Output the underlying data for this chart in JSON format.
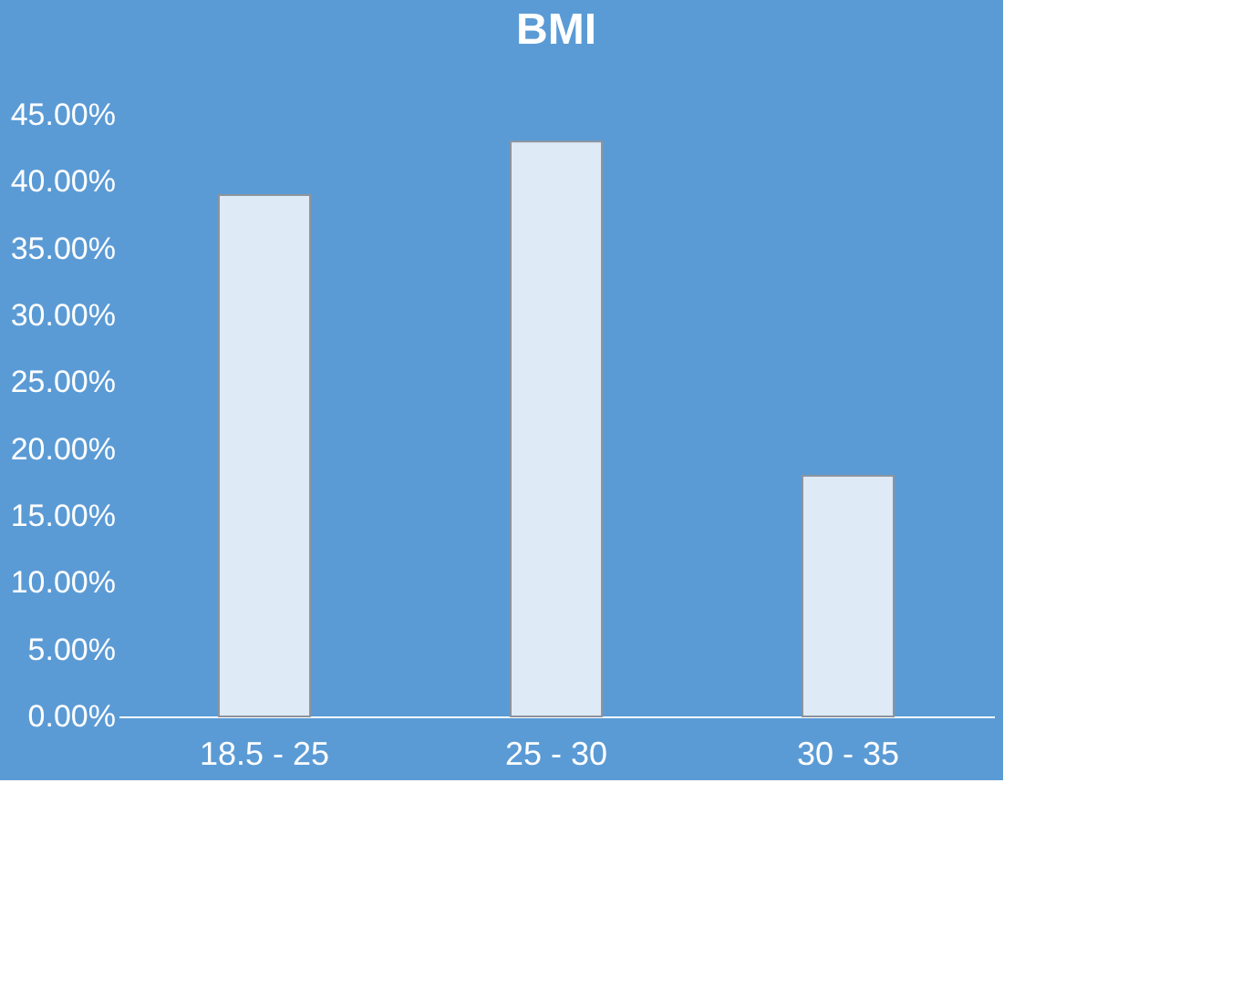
{
  "chart_data": {
    "type": "bar",
    "title": "BMI",
    "categories": [
      "18.5 - 25",
      "25 - 30",
      "30 - 35"
    ],
    "values": [
      39,
      43,
      18
    ],
    "color": "#dfeaf7",
    "ylim": [
      0,
      45
    ],
    "yticks": [
      {
        "value": 0,
        "label": "0.00%"
      },
      {
        "value": 5,
        "label": "5.00%"
      },
      {
        "value": 10,
        "label": "10.00%"
      },
      {
        "value": 15,
        "label": "15.00%"
      },
      {
        "value": 20,
        "label": "20.00%"
      },
      {
        "value": 25,
        "label": "25.00%"
      },
      {
        "value": 30,
        "label": "30.00%"
      },
      {
        "value": 35,
        "label": "35.00%"
      },
      {
        "value": 40,
        "label": "40.00%"
      },
      {
        "value": 45,
        "label": "45.00%"
      }
    ],
    "grid": false
  }
}
